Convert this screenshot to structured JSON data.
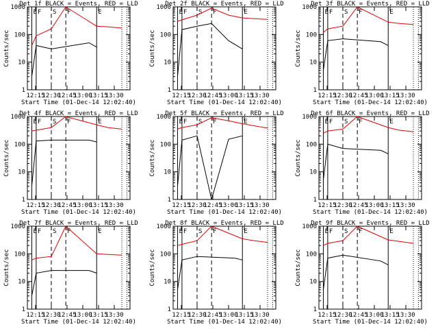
{
  "chart_data": [
    {
      "type": "line",
      "title": "Det 1f BLACK = Events, RED = LLD",
      "ylabel": "Counts/sec",
      "xlabel": "Start Time (01-Dec-14 12:02:40)",
      "xticks": [
        "12:15",
        "12:30",
        "12:45",
        "13:00",
        "13:15",
        "13:30"
      ],
      "yticks": [
        "1",
        "10",
        "100",
        "1000"
      ],
      "yscale": "log",
      "ylim": [
        1,
        1000
      ],
      "markers": [
        "E",
        "F",
        "S",
        "F",
        "E"
      ],
      "series": [
        {
          "color": "#000000",
          "x": [
            12.19,
            12.26,
            12.5,
            13.1,
            13.22
          ],
          "y": [
            3,
            40,
            30,
            50,
            35
          ]
        },
        {
          "color": "#e00000",
          "x": [
            12.19,
            12.26,
            12.5,
            12.73,
            13.22,
            13.4,
            13.62
          ],
          "y": [
            40,
            90,
            160,
            1000,
            200,
            190,
            170
          ]
        }
      ]
    },
    {
      "type": "line",
      "title": "Det 2f BLACK = Events, RED = LLD",
      "ylabel": "Counts/sec",
      "xlabel": "Start Time (01-Dec-14 12:02:40)",
      "xticks": [
        "12:15",
        "12:30",
        "12:45",
        "13:00",
        "13:15",
        "13:30"
      ],
      "yticks": [
        "1",
        "10",
        "100",
        "1000"
      ],
      "yscale": "log",
      "ylim": [
        1,
        1000
      ],
      "markers": [
        "E",
        "F",
        "S",
        "F",
        "E"
      ],
      "series": [
        {
          "color": "#000000",
          "x": [
            12.19,
            12.26,
            12.5,
            12.73,
            13.0,
            13.22
          ],
          "y": [
            3,
            150,
            200,
            250,
            60,
            30
          ]
        },
        {
          "color": "#e00000",
          "x": [
            12.19,
            12.26,
            12.5,
            12.73,
            13.0,
            13.22,
            13.62
          ],
          "y": [
            300,
            340,
            500,
            900,
            500,
            400,
            350
          ]
        }
      ]
    },
    {
      "type": "line",
      "title": "Det 3f BLACK = Events, RED = LLD",
      "ylabel": "Counts/sec",
      "xlabel": "Start Time (01-Dec-14 12:02:40)",
      "xticks": [
        "12:15",
        "12:30",
        "12:45",
        "13:00",
        "13:15",
        "13:30"
      ],
      "yticks": [
        "1",
        "10",
        "100",
        "1000"
      ],
      "yscale": "log",
      "ylim": [
        1,
        1000
      ],
      "markers": [
        "E",
        "F",
        "S",
        "F",
        "E"
      ],
      "series": [
        {
          "color": "#000000",
          "x": [
            12.19,
            12.26,
            12.5,
            13.1,
            13.22
          ],
          "y": [
            5,
            60,
            70,
            55,
            40
          ]
        },
        {
          "color": "#e00000",
          "x": [
            12.19,
            12.26,
            12.5,
            12.73,
            13.22,
            13.4,
            13.62
          ],
          "y": [
            120,
            160,
            200,
            1000,
            280,
            250,
            230
          ]
        }
      ]
    },
    {
      "type": "line",
      "title": "Det 4f BLACK = Events, RED = LLD",
      "ylabel": "Counts/sec",
      "xlabel": "Start Time (01-Dec-14 12:02:40)",
      "xticks": [
        "12:15",
        "12:30",
        "12:45",
        "13:00",
        "13:15",
        "13:30"
      ],
      "yticks": [
        "1",
        "10",
        "100",
        "1000"
      ],
      "yscale": "log",
      "ylim": [
        1,
        1000
      ],
      "markers": [
        "E",
        "F",
        "S",
        "F",
        "E"
      ],
      "series": [
        {
          "color": "#000000",
          "x": [
            12.19,
            12.26,
            12.5,
            13.1,
            13.22
          ],
          "y": [
            3,
            130,
            140,
            140,
            120
          ]
        },
        {
          "color": "#e00000",
          "x": [
            12.19,
            12.26,
            12.5,
            12.73,
            13.22,
            13.4,
            13.62
          ],
          "y": [
            300,
            320,
            400,
            1000,
            500,
            400,
            350
          ]
        }
      ]
    },
    {
      "type": "line",
      "title": "Det 5f BLACK = Events, RED = LLD",
      "ylabel": "Counts/sec",
      "xlabel": "Start Time (01-Dec-14 12:02:40)",
      "xticks": [
        "12:15",
        "12:30",
        "12:45",
        "13:00",
        "13:15",
        "13:30"
      ],
      "yticks": [
        "1",
        "10",
        "100",
        "1000"
      ],
      "yscale": "log",
      "ylim": [
        1,
        1000
      ],
      "markers": [
        "E",
        "F",
        "S",
        "F",
        "E"
      ],
      "series": [
        {
          "color": "#000000",
          "x": [
            12.19,
            12.26,
            12.5,
            12.73,
            13.0,
            13.22
          ],
          "y": [
            3,
            140,
            200,
            1,
            150,
            200
          ]
        },
        {
          "color": "#e00000",
          "x": [
            12.19,
            12.26,
            12.5,
            12.73,
            13.0,
            13.22,
            13.62
          ],
          "y": [
            350,
            400,
            500,
            900,
            700,
            550,
            380
          ]
        }
      ]
    },
    {
      "type": "line",
      "title": "Det 6f BLACK = Events, RED = LLD",
      "ylabel": "Counts/sec",
      "xlabel": "Start Time (01-Dec-14 12:02:40)",
      "xticks": [
        "12:15",
        "12:30",
        "12:45",
        "13:00",
        "13:15",
        "13:30"
      ],
      "yticks": [
        "1",
        "10",
        "100",
        "1000"
      ],
      "yscale": "log",
      "ylim": [
        1,
        1000
      ],
      "markers": [
        "E",
        "F",
        "S",
        "F",
        "E"
      ],
      "series": [
        {
          "color": "#000000",
          "x": [
            12.19,
            12.26,
            12.5,
            13.1,
            13.22
          ],
          "y": [
            5,
            100,
            70,
            60,
            45
          ]
        },
        {
          "color": "#e00000",
          "x": [
            12.19,
            12.26,
            12.5,
            12.73,
            13.22,
            13.4,
            13.62
          ],
          "y": [
            250,
            300,
            350,
            1000,
            400,
            320,
            280
          ]
        }
      ]
    },
    {
      "type": "line",
      "title": "Det 7f BLACK = Events, RED = LLD",
      "ylabel": "Counts/sec",
      "xlabel": "Start Time (01-Dec-14 12:02:40)",
      "xticks": [
        "12:15",
        "12:30",
        "12:45",
        "13:00",
        "13:15",
        "13:30"
      ],
      "yticks": [
        "1",
        "10",
        "100",
        "1000"
      ],
      "yscale": "log",
      "ylim": [
        1,
        1000
      ],
      "markers": [
        "E",
        "F",
        "S",
        "F",
        "E"
      ],
      "series": [
        {
          "color": "#000000",
          "x": [
            12.19,
            12.26,
            12.5,
            13.1,
            13.22
          ],
          "y": [
            3,
            20,
            25,
            25,
            20
          ]
        },
        {
          "color": "#e00000",
          "x": [
            12.19,
            12.26,
            12.5,
            12.73,
            13.22,
            13.4,
            13.62
          ],
          "y": [
            60,
            70,
            80,
            1000,
            100,
            95,
            90
          ]
        }
      ]
    },
    {
      "type": "line",
      "title": "Det 8f BLACK = Events, RED = LLD",
      "ylabel": "Counts/sec",
      "xlabel": "Start Time (01-Dec-14 12:02:40)",
      "xticks": [
        "12:15",
        "12:30",
        "12:45",
        "13:00",
        "13:15",
        "13:30"
      ],
      "yticks": [
        "1",
        "10",
        "100",
        "1000"
      ],
      "yscale": "log",
      "ylim": [
        1,
        1000
      ],
      "markers": [
        "E",
        "F",
        "S",
        "F",
        "E"
      ],
      "series": [
        {
          "color": "#000000",
          "x": [
            12.19,
            12.26,
            12.5,
            13.1,
            13.22
          ],
          "y": [
            5,
            60,
            80,
            70,
            60
          ]
        },
        {
          "color": "#e00000",
          "x": [
            12.19,
            12.26,
            12.5,
            12.73,
            13.22,
            13.4,
            13.62
          ],
          "y": [
            200,
            220,
            300,
            1000,
            350,
            300,
            260
          ]
        }
      ]
    },
    {
      "type": "line",
      "title": "Det 9f BLACK = Events, RED = LLD",
      "ylabel": "Counts/sec",
      "xlabel": "Start Time (01-Dec-14 12:02:40)",
      "xticks": [
        "12:15",
        "12:30",
        "12:45",
        "13:00",
        "13:15",
        "13:30"
      ],
      "yticks": [
        "1",
        "10",
        "100",
        "1000"
      ],
      "yscale": "log",
      "ylim": [
        1,
        1000
      ],
      "markers": [
        "E",
        "F",
        "S",
        "F",
        "E"
      ],
      "series": [
        {
          "color": "#000000",
          "x": [
            12.19,
            12.26,
            12.5,
            13.1,
            13.22
          ],
          "y": [
            5,
            70,
            90,
            55,
            40
          ]
        },
        {
          "color": "#e00000",
          "x": [
            12.19,
            12.26,
            12.5,
            12.73,
            13.22,
            13.4,
            13.62
          ],
          "y": [
            200,
            240,
            300,
            1000,
            320,
            280,
            240
          ]
        }
      ]
    }
  ]
}
